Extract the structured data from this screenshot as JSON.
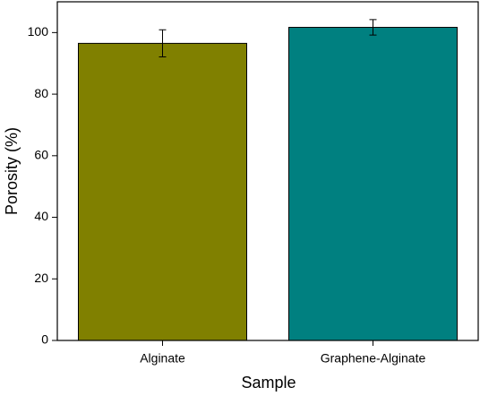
{
  "chart_data": {
    "type": "bar",
    "x_label": "Sample",
    "y_label": "Porosity (%)",
    "categories": [
      "Alginate",
      "Graphene-Alginate"
    ],
    "values": [
      96.5,
      101.7
    ],
    "errors": [
      4.4,
      2.5
    ],
    "colors": [
      "#808000",
      "#008080"
    ],
    "ylim": [
      0,
      110
    ],
    "yticks": [
      0,
      20,
      40,
      60,
      80,
      100
    ]
  }
}
